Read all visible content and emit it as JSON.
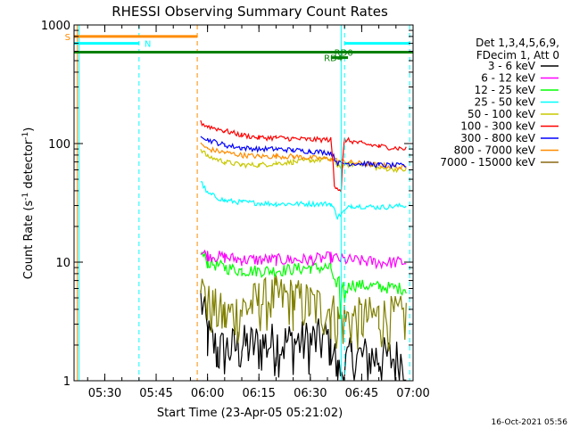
{
  "chart_data": {
    "type": "line",
    "title": "RHESSI Observing Summary Count Rates",
    "xlabel": "Start Time (23-Apr-05 05:21:02)",
    "ylabel_main": "Count Rate (s",
    "ylabel_sup1": "-1",
    "ylabel_mid": " detector",
    "ylabel_sup2": "-1",
    "ylabel_end": ")",
    "y_scale": "log",
    "ylim": [
      1,
      1000
    ],
    "xlim": [
      "05:21:02",
      "07:00:00"
    ],
    "x_ticks": [
      "05:30",
      "05:45",
      "06:00",
      "06:15",
      "06:30",
      "06:45",
      "07:00"
    ],
    "y_ticks": [
      "1",
      "10",
      "100",
      "1000"
    ],
    "legend_position": "right",
    "legend_header": [
      "Det 1,3,4,5,6,9,",
      "FDecim 1, Att 0"
    ],
    "series": [
      {
        "name": "3 - 6 keV",
        "color": "#000000"
      },
      {
        "name": "6 - 12 keV",
        "color": "#ff00ff"
      },
      {
        "name": "12 - 25 keV",
        "color": "#00ff00"
      },
      {
        "name": "25 - 50 keV",
        "color": "#00ffff"
      },
      {
        "name": "50 - 100 keV",
        "color": "#c8c800"
      },
      {
        "name": "100 - 300 keV",
        "color": "#ff0000"
      },
      {
        "name": "300 - 800 keV",
        "color": "#0000ff"
      },
      {
        "name": "800 - 7000 keV",
        "color": "#ff8c00"
      },
      {
        "name": "7000 - 15000 keV",
        "color": "#8b6914"
      }
    ],
    "data_series": [
      {
        "color": "#000000",
        "points": [
          [
            "05:58",
            5
          ],
          [
            "06:00",
            2.4
          ],
          [
            "06:03",
            1.8
          ],
          [
            "06:10",
            2.0
          ],
          [
            "06:20",
            2.1
          ],
          [
            "06:30",
            2.2
          ],
          [
            "06:36",
            2.3
          ],
          [
            "06:38",
            1.1
          ],
          [
            "06:42",
            1.6
          ],
          [
            "06:50",
            1.6
          ],
          [
            "06:58",
            1.5
          ]
        ]
      },
      {
        "color": "#808000",
        "points": [
          [
            "05:58",
            6
          ],
          [
            "06:00",
            4.5
          ],
          [
            "06:05",
            3.5
          ],
          [
            "06:10",
            4.0
          ],
          [
            "06:15",
            4.8
          ],
          [
            "06:20",
            5.2
          ],
          [
            "06:25",
            5.0
          ],
          [
            "06:30",
            4.5
          ],
          [
            "06:36",
            4.0
          ],
          [
            "06:38",
            3.3
          ],
          [
            "06:45",
            3.4
          ],
          [
            "06:50",
            3.5
          ],
          [
            "06:58",
            3.5
          ]
        ]
      },
      {
        "color": "#00ff00",
        "points": [
          [
            "05:58",
            12
          ],
          [
            "06:00",
            10
          ],
          [
            "06:05",
            9.0
          ],
          [
            "06:10",
            8.5
          ],
          [
            "06:20",
            8.5
          ],
          [
            "06:30",
            9.0
          ],
          [
            "06:36",
            9.0
          ],
          [
            "06:38",
            5.0
          ],
          [
            "06:42",
            6.5
          ],
          [
            "06:50",
            6.2
          ],
          [
            "06:58",
            6.0
          ]
        ]
      },
      {
        "color": "#ff00ff",
        "points": [
          [
            "05:58",
            12
          ],
          [
            "06:00",
            11.5
          ],
          [
            "06:05",
            11
          ],
          [
            "06:10",
            10.5
          ],
          [
            "06:20",
            10.5
          ],
          [
            "06:30",
            10.5
          ],
          [
            "06:36",
            11
          ],
          [
            "06:40",
            10.5
          ],
          [
            "06:50",
            10.0
          ],
          [
            "06:58",
            10.0
          ]
        ]
      },
      {
        "color": "#00ffff",
        "points": [
          [
            "05:58",
            48
          ],
          [
            "06:00",
            38
          ],
          [
            "06:05",
            33
          ],
          [
            "06:10",
            32
          ],
          [
            "06:20",
            31
          ],
          [
            "06:30",
            31
          ],
          [
            "06:36",
            31
          ],
          [
            "06:38",
            24
          ],
          [
            "06:42",
            30
          ],
          [
            "06:50",
            29
          ],
          [
            "06:58",
            30
          ]
        ]
      },
      {
        "color": "#c8c800",
        "points": [
          [
            "05:58",
            90
          ],
          [
            "06:00",
            78
          ],
          [
            "06:05",
            70
          ],
          [
            "06:10",
            66
          ],
          [
            "06:15",
            66
          ],
          [
            "06:20",
            68
          ],
          [
            "06:25",
            70
          ],
          [
            "06:30",
            72
          ],
          [
            "06:36",
            74
          ],
          [
            "06:38",
            65
          ],
          [
            "06:45",
            68
          ],
          [
            "06:50",
            62
          ],
          [
            "06:58",
            60
          ]
        ]
      },
      {
        "color": "#ff8c00",
        "points": [
          [
            "05:58",
            100
          ],
          [
            "06:00",
            90
          ],
          [
            "06:05",
            84
          ],
          [
            "06:10",
            80
          ],
          [
            "06:15",
            78
          ],
          [
            "06:20",
            78
          ],
          [
            "06:25",
            78
          ],
          [
            "06:30",
            76
          ],
          [
            "06:36",
            74
          ],
          [
            "06:40",
            70
          ],
          [
            "06:50",
            66
          ],
          [
            "06:58",
            62
          ]
        ]
      },
      {
        "color": "#0000ff",
        "points": [
          [
            "05:58",
            120
          ],
          [
            "06:00",
            108
          ],
          [
            "06:05",
            97
          ],
          [
            "06:10",
            92
          ],
          [
            "06:15",
            90
          ],
          [
            "06:20",
            90
          ],
          [
            "06:25",
            88
          ],
          [
            "06:30",
            86
          ],
          [
            "06:36",
            84
          ],
          [
            "06:38",
            68
          ],
          [
            "06:45",
            68
          ],
          [
            "06:50",
            66
          ],
          [
            "06:58",
            65
          ]
        ]
      },
      {
        "color": "#ff0000",
        "points": [
          [
            "05:58",
            150
          ],
          [
            "06:00",
            140
          ],
          [
            "06:05",
            128
          ],
          [
            "06:10",
            118
          ],
          [
            "06:15",
            112
          ],
          [
            "06:20",
            112
          ],
          [
            "06:25",
            110
          ],
          [
            "06:30",
            108
          ],
          [
            "06:36",
            108
          ],
          [
            "06:37",
            45
          ],
          [
            "06:39",
            40
          ],
          [
            "06:40",
            108
          ],
          [
            "06:45",
            100
          ],
          [
            "06:50",
            95
          ],
          [
            "06:58",
            90
          ]
        ]
      }
    ],
    "vertical_lines": [
      {
        "time": "05:22",
        "color": "#ff8c00",
        "style": "solid"
      },
      {
        "time": "05:22:30",
        "color": "#00ffff",
        "style": "solid"
      },
      {
        "time": "05:40",
        "color": "#00ffff",
        "style": "dashed"
      },
      {
        "time": "05:57",
        "color": "#ff8c00",
        "style": "dashed"
      },
      {
        "time": "06:39",
        "color": "#00ffff",
        "style": "solid"
      },
      {
        "time": "06:40",
        "color": "#00ffff",
        "style": "dashed"
      },
      {
        "time": "06:59",
        "color": "#00ffff",
        "style": "dashed"
      }
    ],
    "annotations": [
      {
        "label": "S",
        "time_start": "05:21:02",
        "time_end": "05:57",
        "level": 800,
        "color": "#ff8c00",
        "label_anchor": "start"
      },
      {
        "label": "N",
        "time_start": "05:21:02",
        "time_end": "05:40",
        "level": 700,
        "color": "#00ffff",
        "label_anchor": "end"
      },
      {
        "label": "N",
        "time_start": "06:40",
        "time_end": "06:59",
        "level": 700,
        "color": "#00ffff",
        "label_anchor": "none"
      },
      {
        "label": "RD0",
        "time_start": "05:21:02",
        "time_end": "07:00",
        "level": 590,
        "color": "#008000",
        "label_anchor": "custom",
        "label_time": "06:37"
      },
      {
        "label": "RD4",
        "time_start": "06:36",
        "time_end": "06:41",
        "level": 530,
        "color": "#008000",
        "label_anchor": "custom",
        "label_time": "06:34"
      }
    ],
    "footer": "16-Oct-2021 05:56"
  }
}
